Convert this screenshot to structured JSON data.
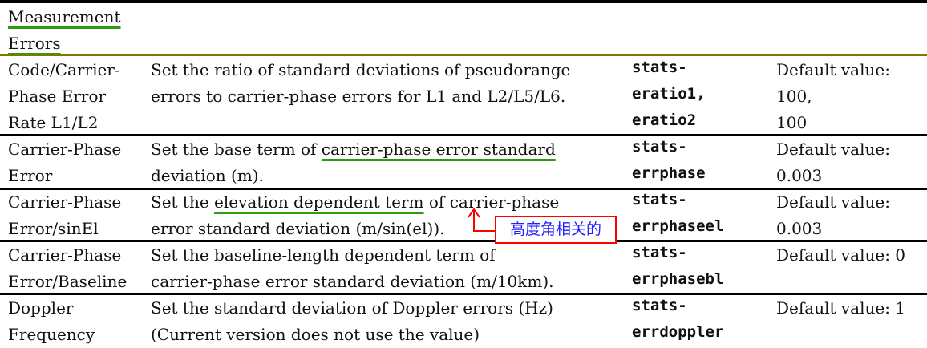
{
  "section_title": [
    "Measurement",
    "Errors"
  ],
  "rows": [
    {
      "name": [
        "Code/Carrier-",
        "Phase Error",
        "Rate L1/L2"
      ],
      "description": [
        "Set the ratio of standard deviations of pseudorange",
        "errors to carrier-phase errors for L1 and L2/L5/L6."
      ],
      "option": [
        "stats-",
        "eratio1,",
        "eratio2"
      ],
      "default": [
        "Default value:",
        "100,",
        "100"
      ]
    },
    {
      "name": [
        "Carrier-Phase",
        "Error"
      ],
      "description_pre": "Set the base term of ",
      "description_ul": "carrier-phase error standard",
      "description2": "deviation (m).",
      "option": [
        "stats-",
        "errphase"
      ],
      "default": [
        "Default value:",
        "0.003"
      ]
    },
    {
      "name": [
        "Carrier-Phase",
        "Error/sinEl"
      ],
      "description_pre": "Set the ",
      "description_ul": "elevation dependent term",
      "description_post": " of carrier-phase",
      "description2": "error standard deviation (m/sin(el)).",
      "option": [
        "stats-",
        "errphaseel"
      ],
      "default": [
        "Default value:",
        "0.003"
      ]
    },
    {
      "name": [
        "Carrier-Phase",
        "Error/Baseline"
      ],
      "description": [
        "Set the baseline-length dependent term of",
        "carrier-phase error standard deviation (m/10km)."
      ],
      "option": [
        "stats-",
        "errphasebl"
      ],
      "default": [
        "Default value: 0"
      ]
    },
    {
      "name": [
        "Doppler",
        "Frequency"
      ],
      "description": [
        "Set the standard deviation of Doppler errors (Hz)",
        "(Current version does not use the value)"
      ],
      "option": [
        "stats-",
        "errdoppler"
      ],
      "default": [
        "Default value: 1"
      ]
    }
  ],
  "annotation": {
    "text": "高度角相关的",
    "border_color": "#ff0000",
    "text_color": "#2020ff",
    "underline_color": "#2a9a10"
  }
}
